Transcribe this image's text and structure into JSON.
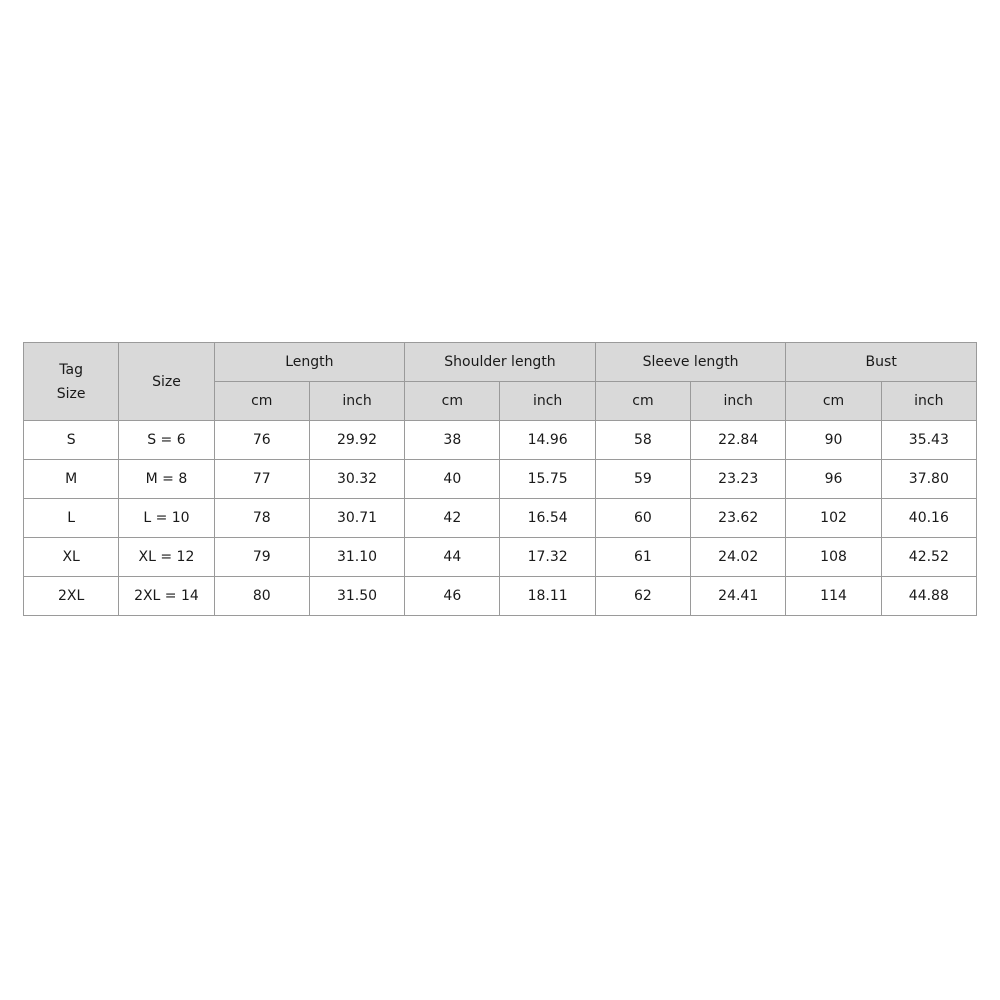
{
  "table": {
    "corner": [
      "Tag",
      "Size"
    ],
    "size_heading": "Size",
    "groups": [
      "Length",
      "Shoulder length",
      "Sleeve length",
      "Bust"
    ],
    "units": [
      "cm",
      "inch",
      "cm",
      "inch",
      "cm",
      "inch",
      "cm",
      "inch"
    ],
    "rows": [
      [
        "S",
        "S = 6",
        "76",
        "29.92",
        "38",
        "14.96",
        "58",
        "22.84",
        "90",
        "35.43"
      ],
      [
        "M",
        "M = 8",
        "77",
        "30.32",
        "40",
        "15.75",
        "59",
        "23.23",
        "96",
        "37.80"
      ],
      [
        "L",
        "L = 10",
        "78",
        "30.71",
        "42",
        "16.54",
        "60",
        "23.62",
        "102",
        "40.16"
      ],
      [
        "XL",
        "XL = 12",
        "79",
        "31.10",
        "44",
        "17.32",
        "61",
        "24.02",
        "108",
        "42.52"
      ],
      [
        "2XL",
        "2XL = 14",
        "80",
        "31.50",
        "46",
        "18.11",
        "62",
        "24.41",
        "114",
        "44.88"
      ]
    ]
  }
}
